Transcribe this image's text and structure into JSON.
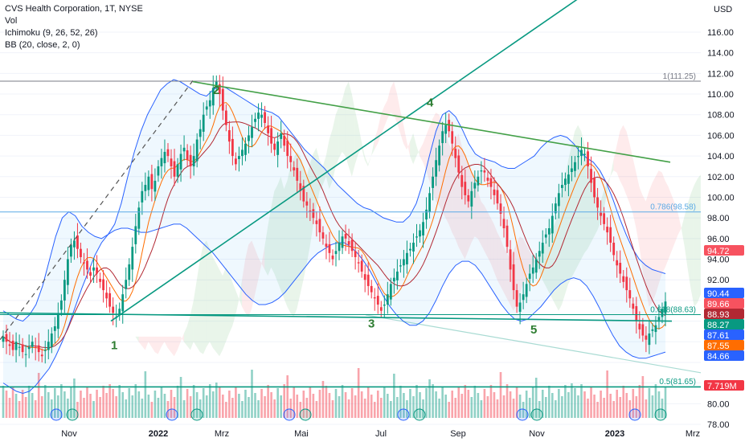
{
  "legend": {
    "title": "CVS Health Corporation, 1T, NYSE",
    "vol": "Vol",
    "ichimoku": "Ichimoku (9, 26, 52, 26)",
    "bb": "BB (20, close, 2, 0)"
  },
  "chart_data": {
    "type": "line",
    "title": "CVS Health Corporation, 1T, NYSE",
    "currency": "USD",
    "y_ticks": [
      78,
      80,
      82,
      84,
      86,
      88,
      90,
      92,
      94,
      96,
      98,
      100,
      102,
      104,
      106,
      108,
      110,
      112,
      114,
      116
    ],
    "y_tick_labels": [
      "78.00",
      "80.00",
      "",
      "",
      "",
      "88.00",
      "",
      "92.00",
      "94.00",
      "96.00",
      "98.00",
      "100.00",
      "102.00",
      "104.00",
      "106.00",
      "108.00",
      "110.00",
      "112.00",
      "114.00",
      "116.00"
    ],
    "x_tick_labels": [
      "Nov",
      "2022",
      "Mrz",
      "Mai",
      "Jul",
      "Sep",
      "Nov",
      "2023",
      "Mrz"
    ],
    "fib_levels": [
      {
        "label": "1(111.25)",
        "value": 111.25,
        "color": "#787b86"
      },
      {
        "label": "0.786(98.58)",
        "value": 98.58,
        "color": "#5aa9e6"
      },
      {
        "label": "0.618(88.63)",
        "value": 88.63,
        "color": "#089981"
      },
      {
        "label": "0.5(81.65)",
        "value": 81.65,
        "color": "#089981"
      }
    ],
    "wave_labels": [
      "1",
      "2",
      "3",
      "4",
      "5"
    ],
    "price_badges": [
      {
        "value": "94.72",
        "color": "#f7525f"
      },
      {
        "value": "90.44",
        "color": "#2962ff"
      },
      {
        "value": "89.66",
        "color": "#f7525f"
      },
      {
        "value": "88.93",
        "color": "#b22833"
      },
      {
        "value": "88.27",
        "color": "#089981"
      },
      {
        "value": "87.61",
        "color": "#2962ff"
      },
      {
        "value": "87.55",
        "color": "#ff6d00"
      },
      {
        "value": "84.66",
        "color": "#2962ff"
      },
      {
        "value": "7.719M",
        "color": "#f23645"
      }
    ],
    "closes": [
      86.5,
      86.0,
      85.6,
      85.2,
      86.0,
      85.5,
      85.0,
      84.8,
      85.5,
      86.0,
      85.4,
      85.0,
      84.6,
      85.2,
      86.0,
      86.8,
      87.5,
      88.6,
      90.0,
      92.0,
      94.0,
      95.4,
      95.8,
      95.0,
      94.2,
      93.6,
      93.0,
      92.4,
      93.2,
      92.6,
      91.8,
      91.0,
      90.2,
      89.4,
      88.8,
      88.4,
      89.2,
      90.6,
      92.0,
      93.5,
      95.2,
      97.2,
      99.0,
      100.6,
      101.2,
      102.0,
      100.8,
      101.6,
      103.0,
      103.8,
      104.4,
      104.0,
      103.0,
      102.0,
      103.2,
      104.2,
      104.8,
      103.6,
      103.0,
      104.0,
      105.6,
      106.6,
      108.0,
      108.8,
      109.4,
      110.6,
      111.2,
      110.0,
      108.4,
      107.0,
      105.4,
      104.0,
      103.2,
      104.0,
      104.6,
      105.2,
      106.0,
      106.8,
      107.6,
      108.2,
      108.0,
      107.2,
      106.2,
      105.2,
      104.6,
      105.4,
      106.2,
      105.0,
      104.0,
      103.4,
      102.6,
      101.6,
      100.6,
      99.6,
      99.2,
      98.6,
      98.0,
      97.4,
      96.6,
      96.0,
      95.2,
      94.6,
      94.0,
      94.8,
      95.6,
      96.2,
      96.0,
      95.4,
      94.8,
      94.2,
      93.6,
      92.8,
      92.0,
      91.4,
      90.8,
      90.2,
      89.6,
      89.0,
      89.6,
      90.6,
      91.6,
      92.2,
      92.8,
      93.4,
      94.0,
      94.6,
      95.0,
      95.6,
      96.2,
      96.8,
      97.6,
      98.8,
      100.4,
      102.0,
      103.6,
      105.0,
      106.4,
      107.0,
      106.4,
      105.2,
      103.8,
      102.4,
      101.0,
      100.2,
      99.6,
      100.6,
      101.4,
      102.0,
      102.6,
      102.4,
      101.6,
      101.0,
      100.2,
      99.4,
      98.4,
      97.0,
      95.2,
      93.0,
      91.0,
      89.4,
      89.8,
      90.6,
      91.6,
      92.6,
      93.2,
      94.0,
      94.8,
      95.6,
      96.4,
      97.0,
      98.2,
      99.4,
      100.4,
      101.2,
      101.8,
      102.2,
      102.8,
      103.4,
      104.0,
      104.6,
      104.2,
      103.0,
      101.4,
      100.0,
      99.0,
      98.2,
      97.4,
      96.6,
      95.6,
      94.4,
      93.4,
      92.6,
      91.8,
      91.0,
      90.2,
      89.2,
      88.0,
      87.2,
      86.6,
      86.2,
      86.8,
      87.2,
      87.6,
      88.4,
      89.2,
      89.9
    ],
    "bb_upper": [
      89.0,
      88.6,
      88.2,
      88.0,
      88.6,
      89.6,
      91.4,
      93.8,
      96.2,
      98.0,
      98.6,
      98.2,
      97.2,
      96.6,
      96.2,
      96.0,
      96.4,
      97.4,
      99.4,
      102.0,
      104.4,
      106.4,
      108.0,
      109.2,
      110.4,
      111.0,
      111.4,
      111.2,
      110.8,
      110.4,
      110.0,
      109.8,
      110.4,
      110.8,
      110.6,
      110.2,
      109.8,
      109.4,
      109.0,
      108.6,
      108.4,
      108.2,
      107.8,
      107.0,
      106.2,
      105.4,
      104.6,
      104.0,
      103.4,
      102.8,
      102.0,
      101.2,
      100.6,
      100.0,
      99.4,
      99.0,
      98.8,
      98.4,
      98.0,
      97.8,
      97.6,
      97.6,
      98.2,
      99.4,
      101.4,
      104.0,
      106.4,
      108.0,
      108.4,
      107.8,
      106.6,
      105.2,
      104.2,
      103.8,
      103.6,
      103.4,
      103.0,
      102.8,
      102.8,
      103.2,
      103.6,
      104.0,
      104.8,
      105.4,
      105.8,
      106.0,
      105.8,
      105.2,
      104.4,
      103.8,
      103.4,
      102.6,
      101.4,
      99.8,
      98.0,
      96.4,
      95.0,
      94.0,
      93.4,
      93.0,
      92.8,
      92.6
    ],
    "bb_lower": [
      82.0,
      81.6,
      81.2,
      81.0,
      81.2,
      81.8,
      82.6,
      83.4,
      84.6,
      86.0,
      87.6,
      89.4,
      91.2,
      92.8,
      94.4,
      95.6,
      96.4,
      96.8,
      97.0,
      97.0,
      96.8,
      96.6,
      96.6,
      96.8,
      97.0,
      97.2,
      97.4,
      97.4,
      97.0,
      96.4,
      95.8,
      95.2,
      94.6,
      93.8,
      93.0,
      92.2,
      91.4,
      90.6,
      90.0,
      89.6,
      89.6,
      89.8,
      90.2,
      90.8,
      91.6,
      92.4,
      93.2,
      94.0,
      94.6,
      95.0,
      95.4,
      95.6,
      95.6,
      95.2,
      94.6,
      93.8,
      92.8,
      91.6,
      90.4,
      89.4,
      88.6,
      88.0,
      87.6,
      87.6,
      88.0,
      88.8,
      90.0,
      91.4,
      92.6,
      93.4,
      93.8,
      93.8,
      93.4,
      92.6,
      91.6,
      90.6,
      89.6,
      88.8,
      88.2,
      88.0,
      88.2,
      88.8,
      89.4,
      90.2,
      91.0,
      91.6,
      92.0,
      92.2,
      92.0,
      91.4,
      90.4,
      89.2,
      87.8,
      86.6,
      85.6,
      85.0,
      84.6,
      84.4,
      84.4,
      84.6,
      84.8,
      85.0
    ]
  }
}
